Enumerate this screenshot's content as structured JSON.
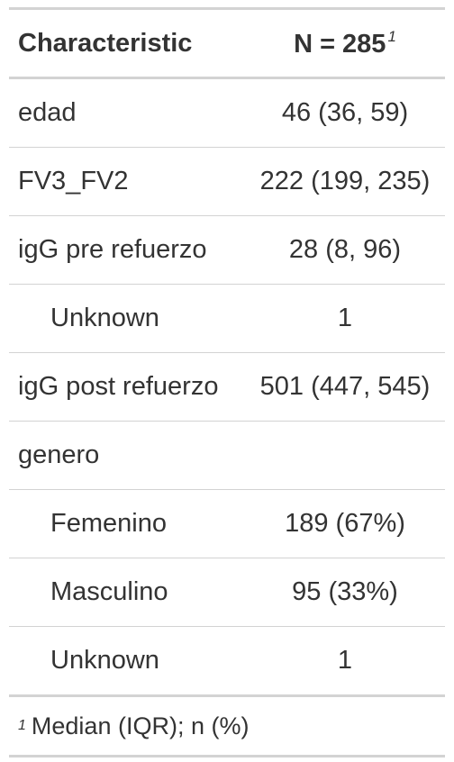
{
  "header": {
    "characteristic": "Characteristic",
    "n_label": "N = 285",
    "n_footnote_marker": "1"
  },
  "rows": [
    {
      "label": "edad",
      "value": "46 (36, 59)"
    },
    {
      "label": "FV3_FV2",
      "value": "222 (199, 235)"
    },
    {
      "label": "igG pre refuerzo",
      "value": "28 (8, 96)"
    },
    {
      "label": "Unknown",
      "value": "1"
    },
    {
      "label": "igG post refuerzo",
      "value": "501 (447, 545)"
    },
    {
      "label": "genero",
      "value": ""
    },
    {
      "label": "Femenino",
      "value": "189 (67%)"
    },
    {
      "label": "Masculino",
      "value": "95 (33%)"
    },
    {
      "label": "Unknown",
      "value": "1"
    }
  ],
  "footnote": {
    "marker": "1",
    "text": "Median (IQR); n (%)"
  },
  "colors": {
    "text": "#333333",
    "rule": "#d3d3d3"
  }
}
